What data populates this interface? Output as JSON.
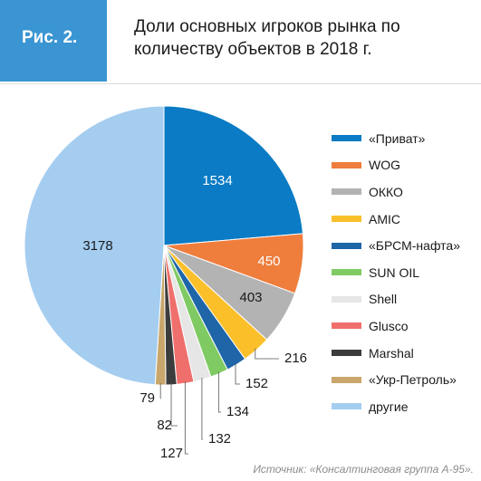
{
  "figure_tag": {
    "label": "Рис. 2.",
    "color": "#3a95d2"
  },
  "title": "Доли основных игроков рынка по количеству объектов в 2018 г.",
  "source": "Источник: «Консалтинговая группа А-95».",
  "chart_data": {
    "type": "pie",
    "start_angle": "12 o'clock",
    "direction": "clockwise",
    "legend_position": "right",
    "categories": [
      "«Приват»",
      "WOG",
      "ОККО",
      "AMIC",
      "«БРСМ-нафта»",
      "SUN OIL",
      "Shell",
      "Glusco",
      "Marshal",
      "«Укр-Петроль»",
      "другие"
    ],
    "values": [
      1534,
      450,
      403,
      216,
      152,
      134,
      132,
      127,
      82,
      79,
      3178
    ],
    "colors": [
      "#0a7bc4",
      "#ef7d3c",
      "#b3b3b3",
      "#fbbf2a",
      "#1f66a8",
      "#7fca63",
      "#e6e6e6",
      "#ef6f6c",
      "#3c3c3c",
      "#c9a66b",
      "#a5cdf0"
    ],
    "value_labels": [
      "1534",
      "450",
      "403",
      "216",
      "152",
      "134",
      "132",
      "127",
      "82",
      "79",
      "3178"
    ]
  }
}
